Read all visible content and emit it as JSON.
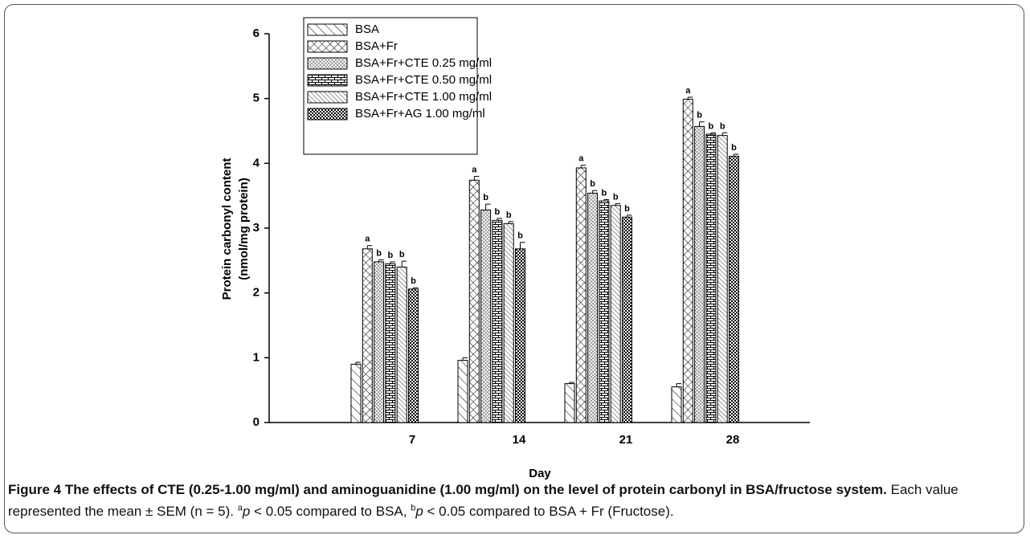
{
  "chart_data": {
    "type": "bar",
    "xlabel": "Day",
    "ylabel": [
      "Protein carbonyl content",
      "(nmol/mg protein)"
    ],
    "categories": [
      "7",
      "14",
      "21",
      "28"
    ],
    "ylim": [
      0,
      6
    ],
    "yticks": [
      0,
      1,
      2,
      3,
      4,
      5,
      6
    ],
    "series": [
      {
        "name": "BSA",
        "color": "#000000",
        "pattern": "sparse-diagonal",
        "values": [
          0.9,
          0.96,
          0.6,
          0.55
        ],
        "errors": [
          0.03,
          0.04,
          0.02,
          0.05
        ]
      },
      {
        "name": "BSA+Fr",
        "color": "#000000",
        "pattern": "crosshatch",
        "values": [
          2.68,
          3.74,
          3.93,
          4.99
        ],
        "errors": [
          0.05,
          0.06,
          0.04,
          0.03
        ],
        "letter": "a"
      },
      {
        "name": "BSA+Fr+CTE 0.25 mg/ml",
        "color": "#000000",
        "pattern": "fine-crosshatch",
        "values": [
          2.48,
          3.28,
          3.54,
          4.57
        ],
        "errors": [
          0.03,
          0.09,
          0.04,
          0.07
        ],
        "letter": "b"
      },
      {
        "name": "BSA+Fr+CTE 0.50 mg/ml",
        "color": "#000000",
        "pattern": "brick",
        "values": [
          2.45,
          3.12,
          3.42,
          4.45
        ],
        "errors": [
          0.03,
          0.03,
          0.02,
          0.02
        ],
        "letter": "b"
      },
      {
        "name": "BSA+Fr+CTE 1.00 mg/ml",
        "color": "#000000",
        "pattern": "dense-diagonal",
        "values": [
          2.4,
          3.07,
          3.35,
          4.43
        ],
        "errors": [
          0.09,
          0.03,
          0.03,
          0.04
        ],
        "letter": "b"
      },
      {
        "name": "BSA+Fr+AG 1.00 mg/ml",
        "color": "#000000",
        "pattern": "checker",
        "values": [
          2.06,
          2.68,
          3.17,
          4.11
        ],
        "errors": [
          0.02,
          0.1,
          0.03,
          0.03
        ],
        "letter": "b"
      }
    ]
  },
  "caption": {
    "label": "Figure 4",
    "title": "The effects of CTE (0.25-1.00 mg/ml) and aminoguanidine (1.00 mg/ml) on the level of protein carbonyl in BSA/fructose system.",
    "body": [
      {
        "text": "Each value represented the mean ± SEM (n = 5). ",
        "style": "normal"
      },
      {
        "text": "a",
        "style": "sup"
      },
      {
        "text": "p",
        "style": "italic"
      },
      {
        "text": " < 0.05 compared to BSA, ",
        "style": "normal"
      },
      {
        "text": "b",
        "style": "sup"
      },
      {
        "text": "p",
        "style": "italic"
      },
      {
        "text": " < 0.05 compared to BSA + Fr (Fructose).",
        "style": "normal"
      }
    ]
  }
}
